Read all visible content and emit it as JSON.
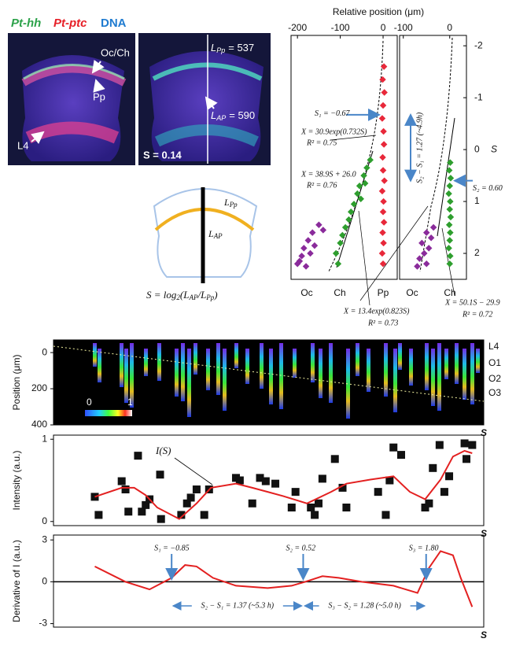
{
  "header": {
    "labels": [
      "Pt-hh",
      "Pt-ptc",
      "DNA"
    ]
  },
  "micrographs": {
    "left_labels": [
      "Oc/Ch",
      "Pp",
      "L4"
    ],
    "right": {
      "lpp": {
        "symbol": "L",
        "sub": "Pp",
        "value": "= 537"
      },
      "lap": {
        "symbol": "L",
        "sub": "AP",
        "value": "= 590"
      },
      "s": "S = 0.14"
    }
  },
  "schematic": {
    "lpp": {
      "symbol": "L",
      "sub": "Pp"
    },
    "lap": {
      "symbol": "L",
      "sub": "AP"
    },
    "formula": [
      "S = log",
      "2",
      "(L",
      "AP",
      "/L",
      "Pp",
      ")"
    ]
  },
  "chart_data": [
    {
      "type": "scatter",
      "xlabel": "Relative position (μm)",
      "xlim": [
        -215,
        33
      ],
      "xticks": [
        -200,
        -100,
        0
      ],
      "ylim": [
        -2.2,
        2.5
      ],
      "y_inverted": true,
      "series": [
        {
          "name": "Oc",
          "color": "#8a2b9b",
          "x": [
            -150,
            -165,
            -140,
            -175,
            -160,
            -185,
            -170,
            -190,
            -195,
            -200,
            -180
          ],
          "y": [
            1.45,
            1.6,
            1.55,
            1.75,
            1.85,
            1.9,
            2.0,
            2.05,
            2.15,
            2.2,
            2.25
          ]
        },
        {
          "name": "Ch",
          "color": "#2e9e2e",
          "x": [
            -30,
            -38,
            -45,
            -42,
            -55,
            -60,
            -52,
            -68,
            -75,
            -80,
            -88,
            -95,
            -100,
            -110,
            -105
          ],
          "y": [
            0.2,
            0.35,
            0.5,
            0.65,
            0.7,
            0.85,
            0.95,
            1.05,
            1.2,
            1.35,
            1.5,
            1.65,
            1.8,
            2.0,
            2.2
          ]
        },
        {
          "name": "Pp",
          "color": "#e8283a",
          "x": [
            2,
            -1,
            3,
            0,
            -2,
            1,
            2,
            -1,
            0,
            3,
            -2,
            1,
            0,
            2,
            -1,
            1,
            -2,
            0
          ],
          "y": [
            -1.6,
            -1.35,
            -1.1,
            -0.85,
            -0.6,
            -0.35,
            -0.1,
            0.15,
            0.4,
            0.6,
            0.8,
            1.0,
            1.2,
            1.4,
            1.6,
            1.8,
            2.0,
            2.2
          ]
        }
      ],
      "markers": [
        {
          "label": "S₁ = −0.67",
          "value": -0.67
        }
      ],
      "annotations": [
        "X = 30.9exp(0.732S)",
        "R² = 0.75",
        "X = 38.9S + 26.0",
        "R² = 0.76",
        "X = 13.4exp(0.823S)",
        "R² = 0.73"
      ]
    },
    {
      "type": "scatter",
      "ylabel": "S",
      "xlim": [
        -108,
        36
      ],
      "xticks": [
        -100,
        0
      ],
      "ylim": [
        -2.2,
        2.5
      ],
      "yticks": [
        -2,
        -1,
        0,
        1,
        2
      ],
      "y_inverted": true,
      "series": [
        {
          "name": "Oc",
          "color": "#8a2b9b",
          "x": [
            -35,
            -50,
            -40,
            -60,
            -45,
            -55,
            -65,
            -50,
            -70
          ],
          "y": [
            1.5,
            1.6,
            1.7,
            1.8,
            1.9,
            2.0,
            2.1,
            2.2,
            2.25
          ]
        },
        {
          "name": "Ch",
          "color": "#2e9e2e",
          "x": [
            1,
            -1,
            2,
            0,
            -2,
            1,
            0,
            2,
            -1,
            1,
            0,
            -2,
            1,
            0
          ],
          "y": [
            0.25,
            0.4,
            0.55,
            0.7,
            0.85,
            1.0,
            1.15,
            1.3,
            1.45,
            1.6,
            1.75,
            1.9,
            2.05,
            2.2
          ]
        }
      ],
      "markers": [
        {
          "label": "S₂ = 0.60",
          "value": 0.6
        }
      ],
      "interval_label": "S₂ − S₁ = 1.27 (~4.9h)",
      "annotations": [
        "X = 50.1S − 29.9",
        "R² = 0.72"
      ]
    },
    {
      "type": "heatmap",
      "ylabel": "Position (μm)",
      "xlabel": "S",
      "ylim": [
        -70,
        400
      ],
      "y_inverted": true,
      "yticks": [
        0,
        200,
        400
      ],
      "row_labels": [
        "L4",
        "O1",
        "O2",
        "O3"
      ],
      "colorbar_ticks": [
        0,
        1
      ]
    },
    {
      "type": "scatter_line",
      "ylabel": "Intensity (a.u.)",
      "xlabel": "S",
      "xlim": [
        -2.08,
        2.4
      ],
      "ylim": [
        -0.05,
        1.05
      ],
      "yticks": [
        0,
        1
      ],
      "points": {
        "color": "#111111",
        "x": [
          -1.65,
          -1.61,
          -1.37,
          -1.33,
          -1.3,
          -1.2,
          -1.16,
          -1.12,
          -1.08,
          -0.97,
          -0.96,
          -0.75,
          -0.69,
          -0.65,
          -0.59,
          -0.51,
          -0.46,
          -0.18,
          -0.14,
          -0.01,
          0.07,
          0.13,
          0.23,
          0.4,
          0.44,
          0.6,
          0.64,
          0.68,
          0.72,
          0.85,
          0.93,
          0.97,
          1.3,
          1.38,
          1.42,
          1.46,
          1.54,
          1.79,
          1.83,
          1.87,
          1.94,
          1.99,
          2.04,
          2.2,
          2.22,
          2.28
        ],
        "y": [
          0.3,
          0.08,
          0.49,
          0.39,
          0.12,
          0.8,
          0.12,
          0.2,
          0.27,
          0.57,
          0.03,
          0.08,
          0.22,
          0.29,
          0.39,
          0.08,
          0.39,
          0.53,
          0.5,
          0.22,
          0.53,
          0.49,
          0.46,
          0.17,
          0.36,
          0.17,
          0.08,
          0.22,
          0.52,
          0.76,
          0.41,
          0.17,
          0.36,
          0.08,
          0.5,
          0.9,
          0.81,
          0.17,
          0.22,
          0.65,
          0.93,
          0.36,
          0.55,
          0.95,
          0.76,
          0.93
        ]
      },
      "curve": {
        "name": "I(S)",
        "color": "#e32020",
        "x": [
          -1.65,
          -1.37,
          -1.24,
          -1.12,
          -1.0,
          -0.77,
          -0.59,
          -0.44,
          -0.18,
          -0.01,
          0.15,
          0.31,
          0.56,
          0.81,
          0.97,
          1.22,
          1.46,
          1.63,
          1.79,
          1.95,
          2.08,
          2.2,
          2.28
        ],
        "y": [
          0.3,
          0.41,
          0.41,
          0.32,
          0.17,
          0.03,
          0.22,
          0.41,
          0.46,
          0.41,
          0.36,
          0.31,
          0.22,
          0.36,
          0.46,
          0.51,
          0.55,
          0.36,
          0.27,
          0.51,
          0.79,
          0.86,
          0.83
        ]
      }
    },
    {
      "type": "line",
      "ylabel": "Derivative of I (a.u.)",
      "xlabel": "S",
      "xlim": [
        -2.08,
        2.4
      ],
      "ylim": [
        -3.25,
        3.35
      ],
      "yticks": [
        -3,
        0,
        3
      ],
      "curve": {
        "color": "#e32020",
        "x": [
          -1.65,
          -1.33,
          -1.08,
          -0.85,
          -0.71,
          -0.59,
          -0.42,
          -0.18,
          0.15,
          0.4,
          0.54,
          0.72,
          0.89,
          1.13,
          1.46,
          1.71,
          1.83,
          1.95,
          2.08,
          2.16,
          2.28
        ],
        "y": [
          1.1,
          0,
          -0.55,
          0.28,
          1.2,
          1.1,
          0.28,
          -0.28,
          -0.45,
          -0.28,
          0,
          0.4,
          0.28,
          0,
          -0.28,
          -0.8,
          1.0,
          2.2,
          1.9,
          0.28,
          -1.8
        ]
      },
      "markers": [
        {
          "label": "S₁ = −0.85",
          "value": -0.85
        },
        {
          "label": "S₂ = 0.52",
          "value": 0.52
        },
        {
          "label": "S₃ = 1.80",
          "value": 1.8
        }
      ],
      "intervals": [
        "S₂ − S₁ = 1.37 (~5.3 h)",
        "S₃ − S₂ = 1.28 (~5.0 h)"
      ]
    }
  ]
}
